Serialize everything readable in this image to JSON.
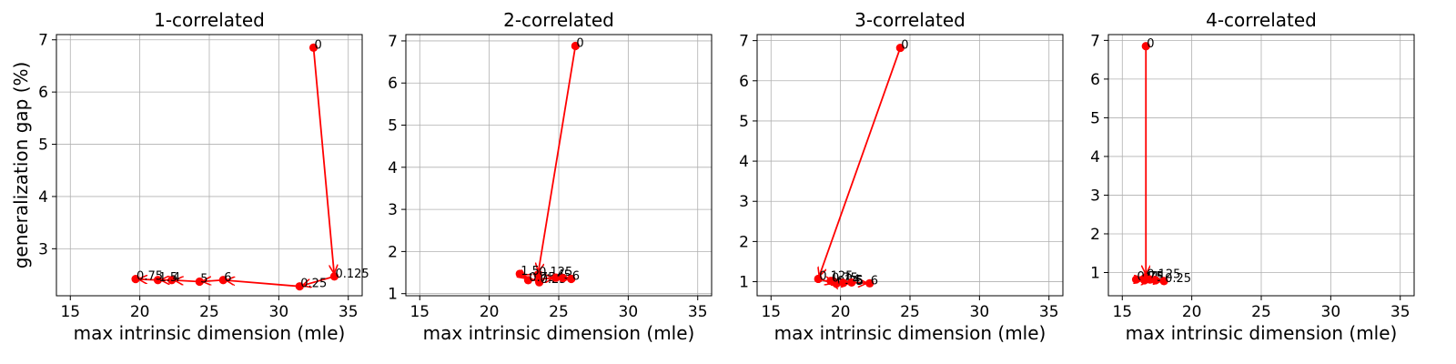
{
  "chart_data": [
    {
      "type": "scatter",
      "title": "1-correlated",
      "xlabel": "max intrinsic dimension (mle)",
      "ylabel": "generalization gap (%)",
      "xlim": [
        14,
        36
      ],
      "ylim": [
        2.1,
        7.1
      ],
      "xticks": [
        15,
        20,
        25,
        30,
        35
      ],
      "yticks": [
        3,
        4,
        5,
        6,
        7
      ],
      "grid": true,
      "color": "#ff0000",
      "points": [
        {
          "label": "0",
          "x": 32.5,
          "y": 6.85
        },
        {
          "label": "0.125",
          "x": 34.0,
          "y": 2.47
        },
        {
          "label": "0.25",
          "x": 31.5,
          "y": 2.28
        },
        {
          "label": "6",
          "x": 26.0,
          "y": 2.4
        },
        {
          "label": "5",
          "x": 24.3,
          "y": 2.37
        },
        {
          "label": "4",
          "x": 22.3,
          "y": 2.4
        },
        {
          "label": "1.5",
          "x": 21.3,
          "y": 2.4
        },
        {
          "label": "0.75",
          "x": 19.7,
          "y": 2.42
        }
      ]
    },
    {
      "type": "scatter",
      "title": "2-correlated",
      "xlabel": "max intrinsic dimension (mle)",
      "ylabel": "",
      "xlim": [
        14,
        36
      ],
      "ylim": [
        0.95,
        7.15
      ],
      "xticks": [
        15,
        20,
        25,
        30,
        35
      ],
      "yticks": [
        1,
        2,
        3,
        4,
        5,
        6,
        7
      ],
      "grid": true,
      "color": "#ff0000",
      "points": [
        {
          "label": "0",
          "x": 26.2,
          "y": 6.88
        },
        {
          "label": "0.125",
          "x": 23.5,
          "y": 1.45
        },
        {
          "label": "0.25",
          "x": 23.6,
          "y": 1.27
        },
        {
          "label": "1.5",
          "x": 22.2,
          "y": 1.47
        },
        {
          "label": "0.75",
          "x": 22.8,
          "y": 1.32
        },
        {
          "label": "4",
          "x": 24.8,
          "y": 1.38
        },
        {
          "label": "5",
          "x": 25.3,
          "y": 1.37
        },
        {
          "label": "6",
          "x": 25.9,
          "y": 1.35
        }
      ]
    },
    {
      "type": "scatter",
      "title": "3-correlated",
      "xlabel": "max intrinsic dimension (mle)",
      "ylabel": "",
      "xlim": [
        14,
        36
      ],
      "ylim": [
        0.65,
        7.15
      ],
      "xticks": [
        15,
        20,
        25,
        30,
        35
      ],
      "yticks": [
        1,
        2,
        3,
        4,
        5,
        6,
        7
      ],
      "grid": true,
      "color": "#ff0000",
      "points": [
        {
          "label": "0",
          "x": 24.3,
          "y": 6.82
        },
        {
          "label": "0.125",
          "x": 18.4,
          "y": 1.07
        },
        {
          "label": "0.25",
          "x": 19.7,
          "y": 0.95
        },
        {
          "label": "0.75",
          "x": 19.3,
          "y": 1.02
        },
        {
          "label": "1.5",
          "x": 20.2,
          "y": 0.97
        },
        {
          "label": "4",
          "x": 20.8,
          "y": 0.98
        },
        {
          "label": "6",
          "x": 22.1,
          "y": 0.96
        }
      ]
    },
    {
      "type": "scatter",
      "title": "4-correlated",
      "xlabel": "max intrinsic dimension (mle)",
      "ylabel": "",
      "xlim": [
        14,
        36
      ],
      "ylim": [
        0.4,
        7.15
      ],
      "xticks": [
        15,
        20,
        25,
        30,
        35
      ],
      "yticks": [
        1,
        2,
        3,
        4,
        5,
        6,
        7
      ],
      "grid": true,
      "color": "#ff0000",
      "points": [
        {
          "label": "0",
          "x": 16.7,
          "y": 6.85
        },
        {
          "label": "0.125",
          "x": 16.7,
          "y": 0.88
        },
        {
          "label": "0.75",
          "x": 16.0,
          "y": 0.82
        },
        {
          "label": "1.5",
          "x": 16.6,
          "y": 0.8
        },
        {
          "label": "4",
          "x": 17.0,
          "y": 0.82
        },
        {
          "label": "5",
          "x": 17.4,
          "y": 0.8
        },
        {
          "label": "0.25",
          "x": 18.0,
          "y": 0.78
        }
      ]
    }
  ]
}
